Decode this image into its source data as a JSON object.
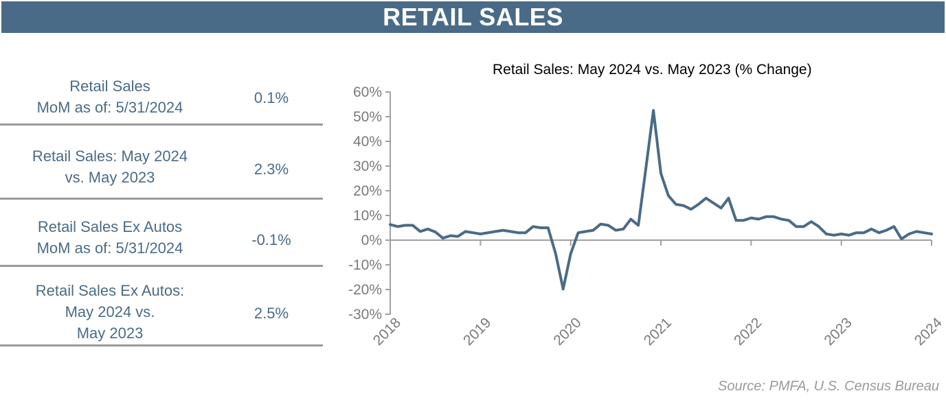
{
  "header": {
    "title": "RETAIL SALES"
  },
  "stats": [
    {
      "label_lines": [
        "Retail Sales",
        "MoM as of: 5/31/2024"
      ],
      "value": "0.1%"
    },
    {
      "label_lines": [
        "Retail Sales: May 2024",
        "vs. May 2023"
      ],
      "value": "2.3%"
    },
    {
      "label_lines": [
        "Retail Sales Ex Autos",
        "MoM as of: 5/31/2024"
      ],
      "value": "-0.1%"
    },
    {
      "label_lines": [
        "Retail Sales Ex Autos:",
        "May 2024 vs.",
        "May 2023"
      ],
      "value": "2.5%"
    }
  ],
  "source": "Source: PMFA, U.S. Census Bureau",
  "chart_data": {
    "type": "line",
    "title": "Retail Sales: May 2024 vs. May 2023 (% Change)",
    "xlabel": "",
    "ylabel": "",
    "x_ticks": [
      "2018",
      "2019",
      "2020",
      "2021",
      "2022",
      "2023",
      "2024"
    ],
    "y_ticks": [
      "60%",
      "50%",
      "40%",
      "30%",
      "20%",
      "10%",
      "0%",
      "-10%",
      "-20%",
      "-30%"
    ],
    "ylim": [
      -30,
      60
    ],
    "xlim": [
      "2018-01",
      "2024-01"
    ],
    "grid": false,
    "color": "#4a6b87",
    "series": [
      {
        "x": [
          "2018-01",
          "2018-02",
          "2018-03",
          "2018-04",
          "2018-05",
          "2018-06",
          "2018-07",
          "2018-08",
          "2018-09",
          "2018-10",
          "2018-11",
          "2018-12",
          "2019-01",
          "2019-02",
          "2019-03",
          "2019-04",
          "2019-05",
          "2019-06",
          "2019-07",
          "2019-08",
          "2019-09",
          "2019-10",
          "2019-11",
          "2019-12",
          "2020-01",
          "2020-02",
          "2020-03",
          "2020-04",
          "2020-05",
          "2020-06",
          "2020-07",
          "2020-08",
          "2020-09",
          "2020-10",
          "2020-11",
          "2020-12",
          "2021-01",
          "2021-02",
          "2021-03",
          "2021-04",
          "2021-05",
          "2021-06",
          "2021-07",
          "2021-08",
          "2021-09",
          "2021-10",
          "2021-11",
          "2021-12",
          "2022-01",
          "2022-02",
          "2022-03",
          "2022-04",
          "2022-05",
          "2022-06",
          "2022-07",
          "2022-08",
          "2022-09",
          "2022-10",
          "2022-11",
          "2022-12",
          "2023-01",
          "2023-02",
          "2023-03",
          "2023-04",
          "2023-05",
          "2023-06",
          "2023-07",
          "2023-08",
          "2023-09",
          "2023-10",
          "2023-11",
          "2023-12",
          "2024-01"
        ],
        "y": [
          6.3,
          5.5,
          6.0,
          6.0,
          3.5,
          4.5,
          3.3,
          0.8,
          1.8,
          1.5,
          3.5,
          3.0,
          2.5,
          3.0,
          3.5,
          4.0,
          3.5,
          3.0,
          3.0,
          5.5,
          5.0,
          5.0,
          -5.5,
          -19.8,
          -5.5,
          3.0,
          3.5,
          4.0,
          6.5,
          6.0,
          4.0,
          4.5,
          8.5,
          6.0,
          29.0,
          52.5,
          27.0,
          18.0,
          14.5,
          14.0,
          12.5,
          14.5,
          17.0,
          15.0,
          13.0,
          17.0,
          8.0,
          8.0,
          9.0,
          8.5,
          9.5,
          9.5,
          8.5,
          8.0,
          5.5,
          5.5,
          7.5,
          5.5,
          2.5,
          2.0,
          2.5,
          2.0,
          3.0,
          3.0,
          4.5,
          3.0,
          4.0,
          5.5,
          0.5,
          2.5,
          3.5,
          3.0,
          2.5
        ]
      }
    ]
  }
}
